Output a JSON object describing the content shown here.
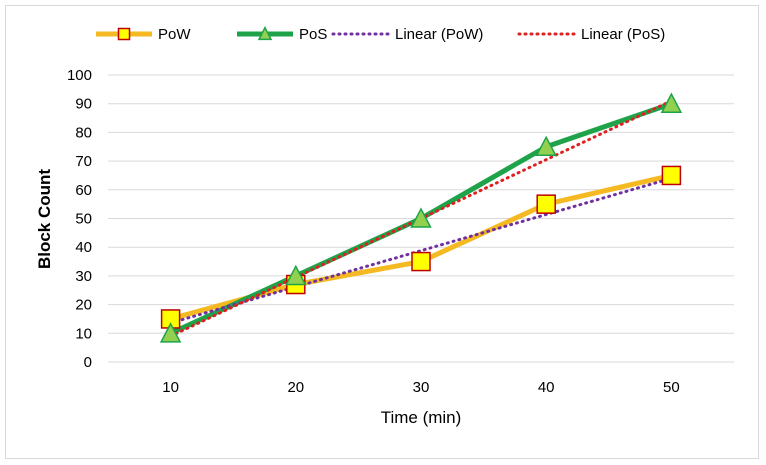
{
  "chart_data": {
    "type": "line",
    "title": "",
    "xlabel": "Time (min)",
    "ylabel": "Block Count",
    "x": [
      10,
      20,
      30,
      40,
      50
    ],
    "ylim": [
      0,
      100
    ],
    "yticks": [
      0,
      10,
      20,
      30,
      40,
      50,
      60,
      70,
      80,
      90,
      100
    ],
    "grid": true,
    "legend_position": "top",
    "series": [
      {
        "name": "PoW",
        "values": [
          15,
          27,
          35,
          55,
          65
        ],
        "color": "#f5b921",
        "marker": "square",
        "marker_fill": "#ffff00",
        "marker_edge": "#c00000",
        "style": "solid"
      },
      {
        "name": "PoS",
        "values": [
          10,
          30,
          50,
          75,
          90
        ],
        "color": "#1ea34a",
        "marker": "triangle",
        "marker_fill": "#92d050",
        "marker_edge": "#1ea34a",
        "style": "solid"
      },
      {
        "name": "Linear (PoW)",
        "values": [
          13.6,
          26.2,
          38.8,
          51.4,
          64.0
        ],
        "color": "#7030a0",
        "marker": "none",
        "style": "dotted"
      },
      {
        "name": "Linear (PoS)",
        "values": [
          9.0,
          29.5,
          50.0,
          70.5,
          91.0
        ],
        "color": "#e02020",
        "marker": "none",
        "style": "dotted"
      }
    ]
  }
}
